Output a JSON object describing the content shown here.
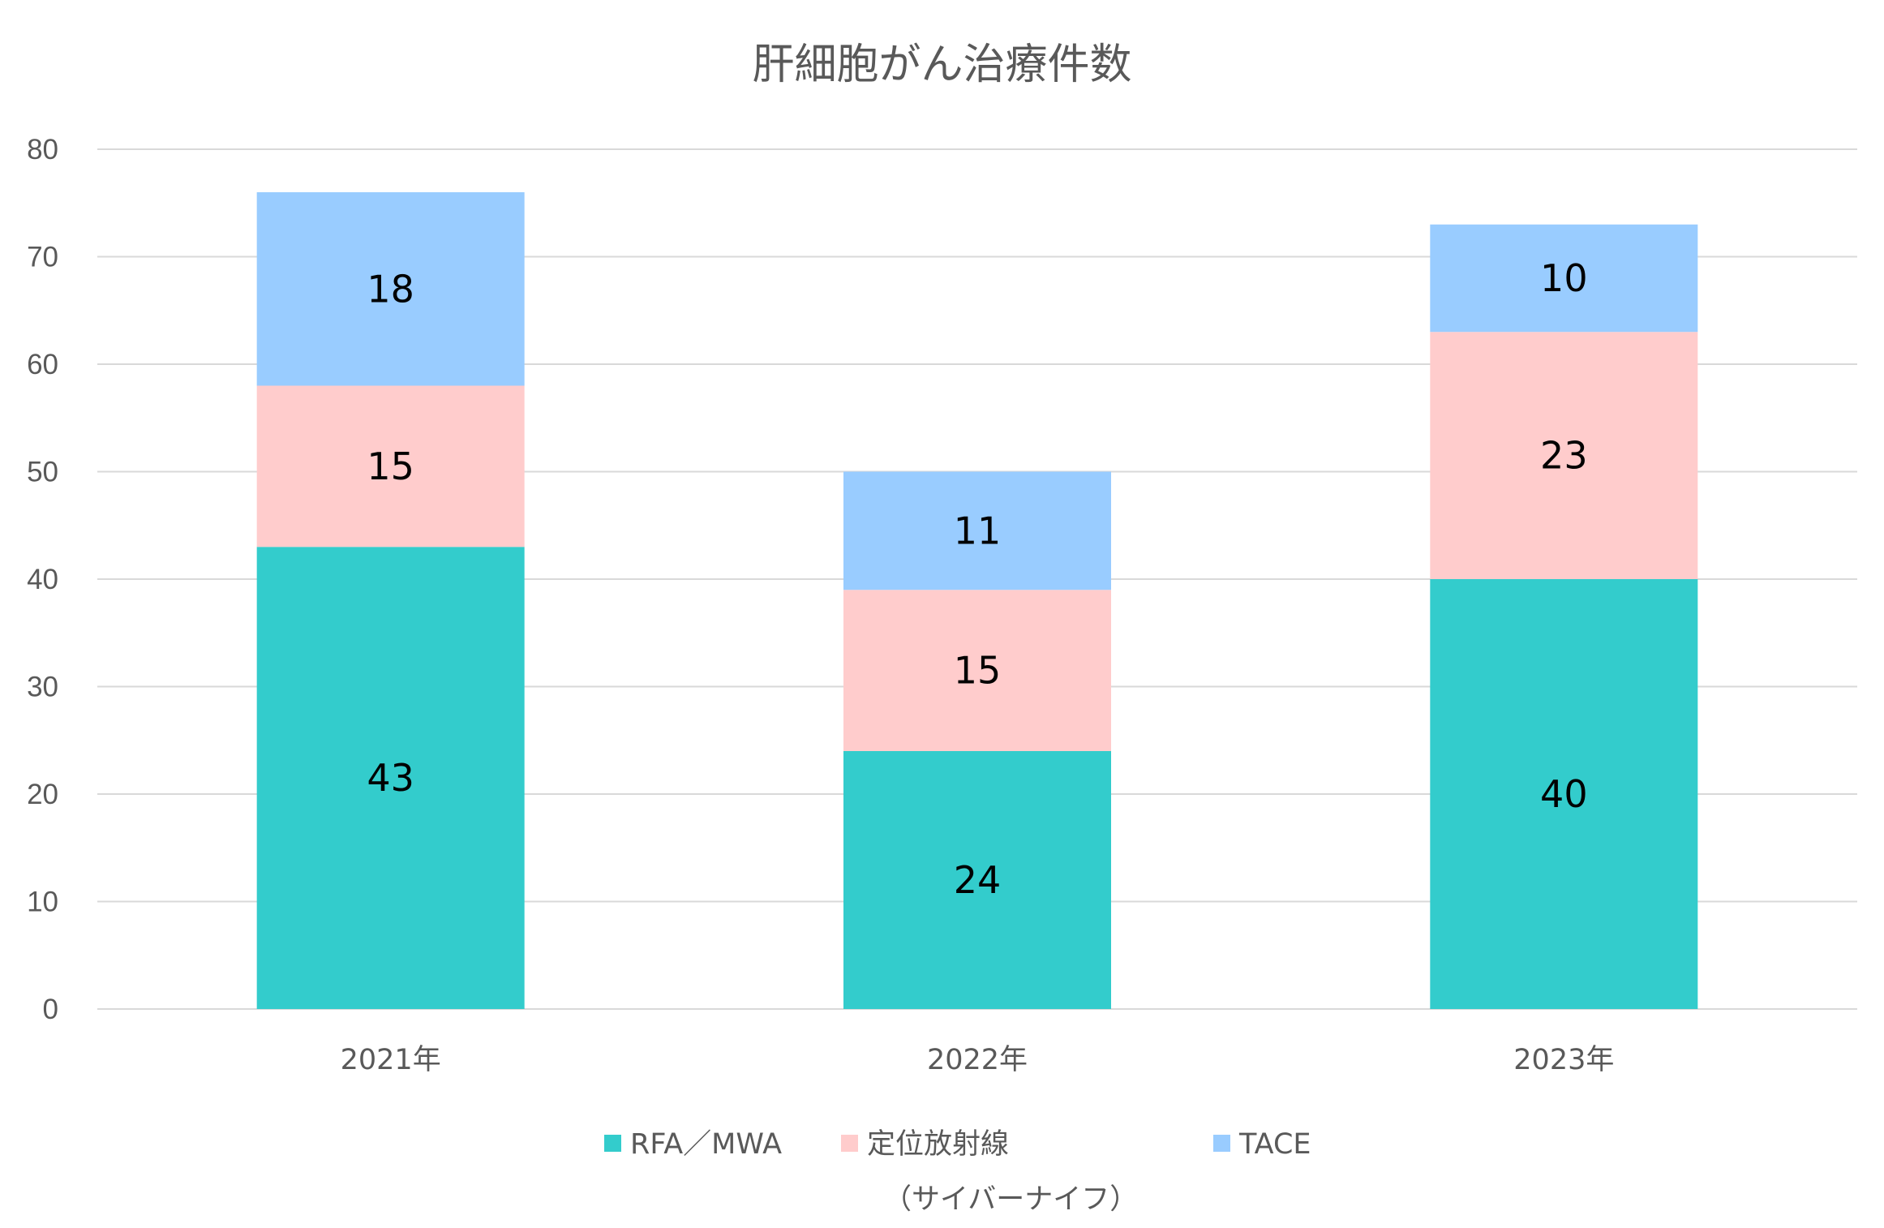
{
  "chart_data": {
    "type": "bar",
    "stacked": true,
    "title": "肝細胞がん治療件数",
    "categories": [
      "2021年",
      "2022年",
      "2023年"
    ],
    "series": [
      {
        "name": "RFA／MWA",
        "values": [
          43,
          24,
          40
        ],
        "color": "#33CCCC"
      },
      {
        "name": "定位放射線（サイバーナイフ）",
        "name_lines": [
          "定位放射線",
          "（サイバーナイフ）"
        ],
        "values": [
          15,
          15,
          23
        ],
        "color": "#FFCCCC"
      },
      {
        "name": "TACE",
        "values": [
          18,
          11,
          10
        ],
        "color": "#99CCFF"
      }
    ],
    "ylim": [
      0,
      80
    ],
    "yticks": [
      0,
      10,
      20,
      30,
      40,
      50,
      60,
      70,
      80
    ],
    "grid": true,
    "legend_position": "bottom",
    "data_labels": true
  }
}
